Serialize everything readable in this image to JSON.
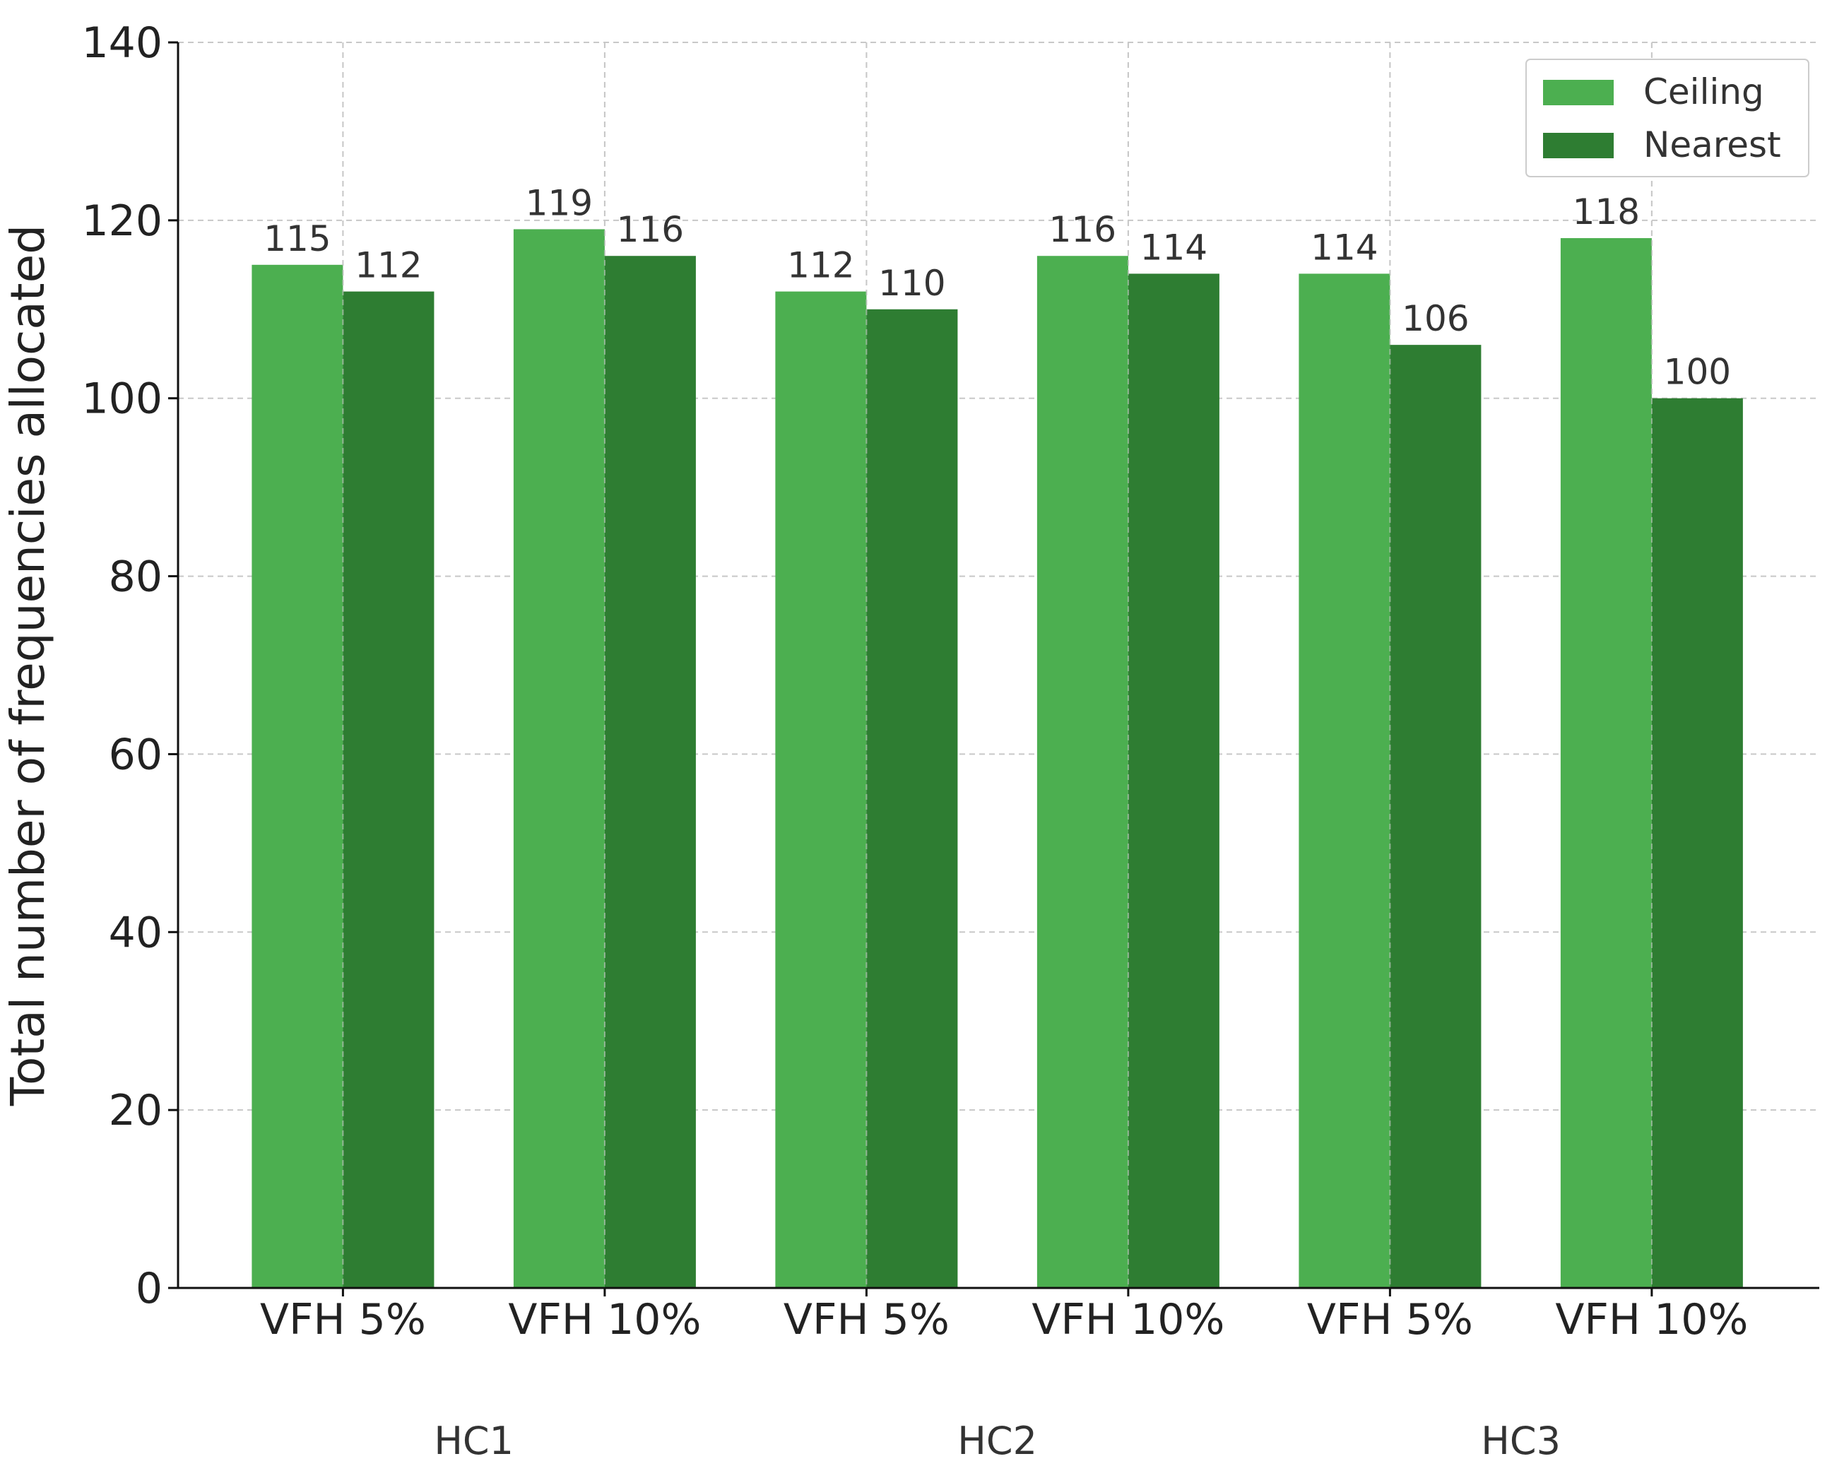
{
  "chart_data": {
    "type": "bar",
    "categories": [
      "VFH 5%",
      "VFH 10%",
      "VFH 5%",
      "VFH 10%",
      "VFH 5%",
      "VFH 10%"
    ],
    "groups": [
      "HC1",
      "HC2",
      "HC3"
    ],
    "series": [
      {
        "name": "Ceiling",
        "color": "#4caf50",
        "values": [
          115,
          119,
          112,
          116,
          114,
          118
        ]
      },
      {
        "name": "Nearest",
        "color": "#2e7d32",
        "values": [
          112,
          116,
          110,
          114,
          106,
          100
        ]
      }
    ],
    "ylabel": "Total number of frequencies allocated",
    "xlabel": "",
    "ylim": [
      0,
      140
    ],
    "yticks": [
      0,
      20,
      40,
      60,
      80,
      100,
      120,
      140
    ],
    "grid": true,
    "legend_position": "top-right"
  }
}
